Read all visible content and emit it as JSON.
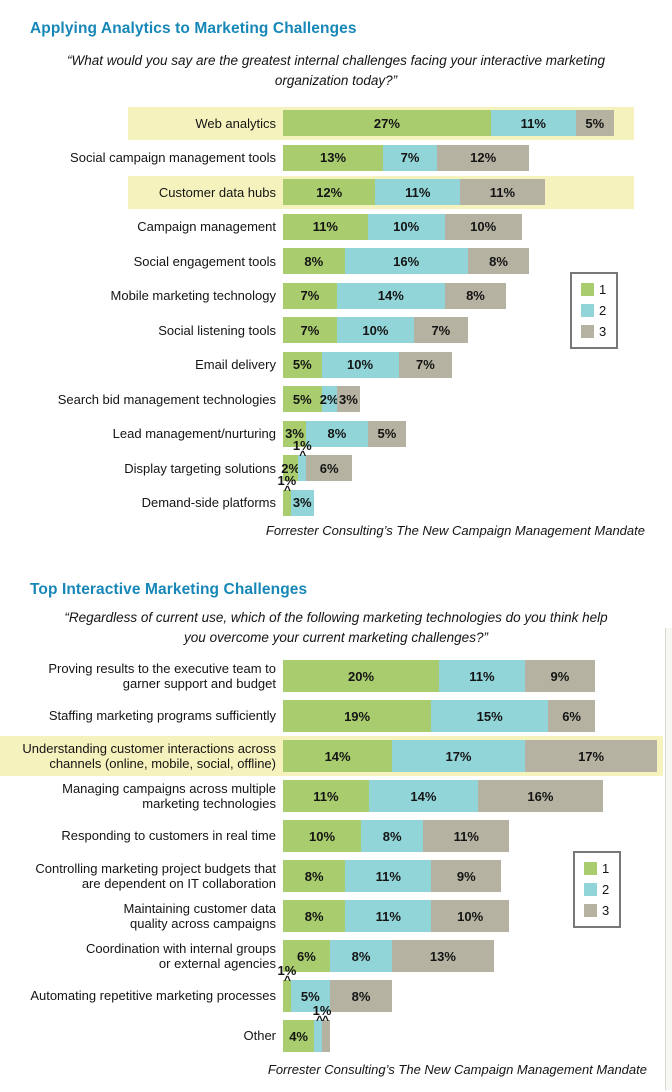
{
  "colors": {
    "series1": "#a9cd6e",
    "series2": "#92d5d9",
    "series3": "#b5b2a1",
    "highlight": "#f6f2bd",
    "title": "#1787b8"
  },
  "chart_data": [
    {
      "type": "bar",
      "variant": "horizontal-stacked",
      "unit": "%",
      "grid": false,
      "legend_position": "right",
      "title": "Applying Analytics to Marketing Challenges",
      "subtitle": "“What would you say are the greatest internal challenges facing your interactive marketing organization today?”",
      "source": "Forrester Consulting’s The New Campaign Management Mandate",
      "legend": [
        {
          "label": "1",
          "color": "#a9cd6e"
        },
        {
          "label": "2",
          "color": "#92d5d9"
        },
        {
          "label": "3",
          "color": "#b5b2a1"
        }
      ],
      "rows": [
        {
          "label": "Web analytics",
          "values": [
            27,
            11,
            5
          ],
          "highlighted": true
        },
        {
          "label": "Social campaign management tools",
          "values": [
            13,
            7,
            12
          ],
          "highlighted": false
        },
        {
          "label": "Customer data hubs",
          "values": [
            12,
            11,
            11
          ],
          "highlighted": true
        },
        {
          "label": "Campaign management",
          "values": [
            11,
            10,
            10
          ],
          "highlighted": false
        },
        {
          "label": "Social engagement tools",
          "values": [
            8,
            16,
            8
          ],
          "highlighted": false
        },
        {
          "label": "Mobile marketing technology",
          "values": [
            7,
            14,
            8
          ],
          "highlighted": false
        },
        {
          "label": "Social listening tools",
          "values": [
            7,
            10,
            7
          ],
          "highlighted": false
        },
        {
          "label": "Email delivery",
          "values": [
            5,
            10,
            7
          ],
          "highlighted": false
        },
        {
          "label": "Search bid management technologies",
          "values": [
            5,
            2,
            3
          ],
          "highlighted": false
        },
        {
          "label": "Lead management/nurturing",
          "values": [
            3,
            8,
            5
          ],
          "highlighted": false
        },
        {
          "label": "Display targeting solutions",
          "values": [
            2,
            1,
            6
          ],
          "highlighted": false,
          "callout": {
            "text": "1%",
            "carets": "^",
            "seg_start": 1,
            "seg_end": 1
          }
        },
        {
          "label": "Demand-side platforms",
          "values": [
            1,
            3,
            0
          ],
          "highlighted": false,
          "callout": {
            "text": "1%",
            "carets": "^",
            "seg_start": 0,
            "seg_end": 0
          }
        }
      ]
    },
    {
      "type": "bar",
      "variant": "horizontal-stacked",
      "unit": "%",
      "grid": false,
      "legend_position": "right",
      "title": "Top Interactive Marketing Challenges",
      "subtitle": "“Regardless of current use, which of the following marketing technologies do you think help you overcome your current marketing challenges?”",
      "source": "Forrester Consulting’s The New Campaign Management Mandate",
      "legend": [
        {
          "label": "1",
          "color": "#a9cd6e"
        },
        {
          "label": "2",
          "color": "#92d5d9"
        },
        {
          "label": "3",
          "color": "#b5b2a1"
        }
      ],
      "rows": [
        {
          "label": "Proving results to the executive team to\ngarner support and budget",
          "values": [
            20,
            11,
            9
          ],
          "highlighted": false
        },
        {
          "label": "Staffing marketing programs sufficiently",
          "values": [
            19,
            15,
            6
          ],
          "highlighted": false
        },
        {
          "label": "Understanding customer interactions across\nchannels (online, mobile, social, offline)",
          "values": [
            14,
            17,
            17
          ],
          "highlighted": true
        },
        {
          "label": "Managing campaigns across multiple\nmarketing technologies",
          "values": [
            11,
            14,
            16
          ],
          "highlighted": false
        },
        {
          "label": "Responding to customers in real time",
          "values": [
            10,
            8,
            11
          ],
          "highlighted": false
        },
        {
          "label": "Controlling marketing project budgets that\nare dependent on IT collaboration",
          "values": [
            8,
            11,
            9
          ],
          "highlighted": false
        },
        {
          "label": "Maintaining customer data\nquality across campaigns",
          "values": [
            8,
            11,
            10
          ],
          "highlighted": false
        },
        {
          "label": "Coordination with internal groups\nor external agencies",
          "values": [
            6,
            8,
            13
          ],
          "highlighted": false
        },
        {
          "label": "Automating repetitive marketing processes",
          "values": [
            1,
            5,
            8
          ],
          "highlighted": false,
          "callout": {
            "text": "1%",
            "carets": "^",
            "seg_start": 0,
            "seg_end": 0
          }
        },
        {
          "label": "Other",
          "values": [
            4,
            1,
            1
          ],
          "highlighted": false,
          "callout": {
            "text": "1%",
            "carets": "^^",
            "seg_start": 1,
            "seg_end": 2
          }
        }
      ]
    }
  ]
}
